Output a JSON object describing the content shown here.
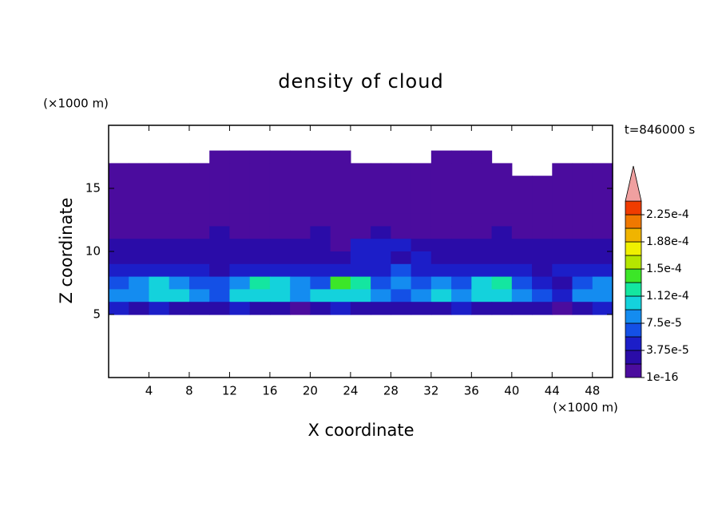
{
  "chart_data": {
    "type": "contour",
    "title": "density of cloud",
    "xlabel": "X coordinate",
    "ylabel": "Z coordinate",
    "xunit": "(×1000 m)",
    "yunit": "(×1000 m)",
    "annotation": "t=846000 s",
    "xlim": [
      0,
      50
    ],
    "ylim": [
      0,
      20
    ],
    "xticks": [
      4,
      8,
      12,
      16,
      20,
      24,
      28,
      32,
      36,
      40,
      44,
      48
    ],
    "yticks": [
      5,
      10,
      15
    ],
    "x": [
      1,
      3,
      5,
      7,
      9,
      11,
      13,
      15,
      17,
      19,
      21,
      23,
      25,
      27,
      29,
      31,
      33,
      35,
      37,
      39,
      41,
      43,
      45,
      47,
      49
    ],
    "z": [
      17.5,
      16.5,
      15.5,
      14.5,
      13.5,
      12.5,
      11.5,
      10.5,
      9.5,
      8.5,
      7.5,
      6.5,
      5.5
    ],
    "values": [
      [
        0,
        0,
        0,
        0,
        0,
        1e-05,
        1e-05,
        1e-05,
        1e-05,
        1e-05,
        1e-05,
        1e-05,
        0,
        0,
        0,
        0,
        1e-05,
        1e-05,
        1e-05,
        0,
        0,
        0,
        0,
        0,
        0
      ],
      [
        1e-05,
        1e-05,
        1e-05,
        1e-05,
        1e-05,
        1e-05,
        1e-05,
        1e-05,
        1e-05,
        1e-05,
        1e-05,
        1e-05,
        1e-05,
        1e-05,
        1e-05,
        1e-05,
        1e-05,
        1e-05,
        1e-05,
        1e-05,
        0,
        0,
        1e-05,
        1e-05,
        1e-05
      ],
      [
        1e-05,
        1e-05,
        1e-05,
        1e-05,
        1e-05,
        1e-05,
        1e-05,
        1e-05,
        1e-05,
        1e-05,
        1e-05,
        1e-05,
        1e-05,
        1e-05,
        1e-05,
        1e-05,
        1e-05,
        1e-05,
        1e-05,
        1e-05,
        1e-05,
        1e-05,
        1e-05,
        1e-05,
        1e-05
      ],
      [
        1e-05,
        1e-05,
        1e-05,
        1e-05,
        1e-05,
        1e-05,
        1e-05,
        1e-05,
        1e-05,
        1e-05,
        1e-05,
        1e-05,
        1e-05,
        1e-05,
        1e-05,
        1e-05,
        1e-05,
        1e-05,
        1e-05,
        1e-05,
        1e-05,
        1e-05,
        1e-05,
        1e-05,
        1e-05
      ],
      [
        1e-05,
        1e-05,
        1e-05,
        1e-05,
        1e-05,
        1e-05,
        1e-05,
        1e-05,
        1e-05,
        1e-05,
        1e-05,
        1e-05,
        1e-05,
        1e-05,
        1e-05,
        1e-05,
        1e-05,
        1e-05,
        1e-05,
        1e-05,
        1e-05,
        1e-05,
        1e-05,
        1e-05,
        1e-05
      ],
      [
        1e-05,
        1e-05,
        1e-05,
        1e-05,
        1e-05,
        1e-05,
        1e-05,
        1e-05,
        1e-05,
        1e-05,
        1e-05,
        1e-05,
        1e-05,
        1e-05,
        1e-05,
        1e-05,
        1e-05,
        1e-05,
        1e-05,
        1e-05,
        1e-05,
        1e-05,
        1e-05,
        1e-05,
        1e-05
      ],
      [
        1e-05,
        1e-05,
        1e-05,
        1e-05,
        1e-05,
        2.5e-05,
        1e-05,
        1e-05,
        1e-05,
        1e-05,
        2.5e-05,
        1e-05,
        1e-05,
        2.5e-05,
        1e-05,
        1e-05,
        1e-05,
        1e-05,
        1e-05,
        2.5e-05,
        1e-05,
        1e-05,
        1e-05,
        1e-05,
        1e-05
      ],
      [
        2.5e-05,
        2.5e-05,
        2.5e-05,
        2.5e-05,
        2.5e-05,
        2.5e-05,
        2.5e-05,
        2.5e-05,
        2.5e-05,
        2.5e-05,
        2.5e-05,
        1e-05,
        4.5e-05,
        4.5e-05,
        4.5e-05,
        2.5e-05,
        2.5e-05,
        2.5e-05,
        2.5e-05,
        2.5e-05,
        2.5e-05,
        2.5e-05,
        2.5e-05,
        2.5e-05,
        2.5e-05
      ],
      [
        2.5e-05,
        2.5e-05,
        2.5e-05,
        2.5e-05,
        2.5e-05,
        2.5e-05,
        2.5e-05,
        2.5e-05,
        2.5e-05,
        2.5e-05,
        2.5e-05,
        2.5e-05,
        4.5e-05,
        4.5e-05,
        2.5e-05,
        4.5e-05,
        2.5e-05,
        2.5e-05,
        2.5e-05,
        2.5e-05,
        2.5e-05,
        2.5e-05,
        2.5e-05,
        2.5e-05,
        2.5e-05
      ],
      [
        4.5e-05,
        4.5e-05,
        4.5e-05,
        4.5e-05,
        4.5e-05,
        2.5e-05,
        4.5e-05,
        4.5e-05,
        4.5e-05,
        4.5e-05,
        4.5e-05,
        4.5e-05,
        4.5e-05,
        4.5e-05,
        6.5e-05,
        4.5e-05,
        4.5e-05,
        4.5e-05,
        4.5e-05,
        4.5e-05,
        4.5e-05,
        2.5e-05,
        4.5e-05,
        4.5e-05,
        4.5e-05
      ],
      [
        6.5e-05,
        8.5e-05,
        0.000105,
        8.5e-05,
        6.5e-05,
        6.5e-05,
        8.5e-05,
        0.00012,
        0.000105,
        8.5e-05,
        6.5e-05,
        0.00014,
        0.00012,
        6.5e-05,
        8.5e-05,
        6.5e-05,
        8.5e-05,
        6.5e-05,
        0.000105,
        0.00012,
        6.5e-05,
        4.5e-05,
        2.5e-05,
        6.5e-05,
        8.5e-05
      ],
      [
        8.5e-05,
        8.5e-05,
        0.000105,
        0.000105,
        8.5e-05,
        6.5e-05,
        0.000105,
        0.000105,
        0.000105,
        8.5e-05,
        0.000105,
        0.000105,
        0.000105,
        8.5e-05,
        6.5e-05,
        8.5e-05,
        0.000105,
        8.5e-05,
        0.000105,
        0.000105,
        8.5e-05,
        6.5e-05,
        4.5e-05,
        8.5e-05,
        8.5e-05
      ],
      [
        4.5e-05,
        2.5e-05,
        4.5e-05,
        2.5e-05,
        2.5e-05,
        2.5e-05,
        4.5e-05,
        2.5e-05,
        2.5e-05,
        1e-05,
        2.5e-05,
        4.5e-05,
        2.5e-05,
        2.5e-05,
        2.5e-05,
        2.5e-05,
        2.5e-05,
        4.5e-05,
        2.5e-05,
        2.5e-05,
        2.5e-05,
        2.5e-05,
        1e-05,
        2.5e-05,
        4.5e-05
      ]
    ],
    "colorbar": {
      "levels": [
        1e-16,
        1.875e-05,
        3.75e-05,
        5.625e-05,
        7.5e-05,
        9.375e-05,
        0.0001125,
        0.00013125,
        0.00015,
        0.00016875,
        0.0001875,
        0.00020625,
        0.000225,
        0.00024375
      ],
      "colors": [
        "#4b0c9e",
        "#2a0ca8",
        "#1c1ec8",
        "#1450e6",
        "#148cf0",
        "#14d2dc",
        "#14e6a0",
        "#3ce628",
        "#b4e600",
        "#f0f000",
        "#f0b400",
        "#f07800",
        "#f03c00"
      ],
      "extend_color": "#f0a0a0",
      "ticks": [
        1e-16,
        {
          "value": 3.75e-05,
          "label": "3.75e-5"
        },
        {
          "value": 7.5e-05,
          "label": "7.5e-5"
        },
        {
          "value": 0.0001125,
          "label": "1.12e-4"
        },
        {
          "value": 0.00015,
          "label": "1.5e-4"
        },
        {
          "value": 0.0001875,
          "label": "1.88e-4"
        },
        {
          "value": 0.000225,
          "label": "2.25e-4"
        }
      ]
    }
  }
}
